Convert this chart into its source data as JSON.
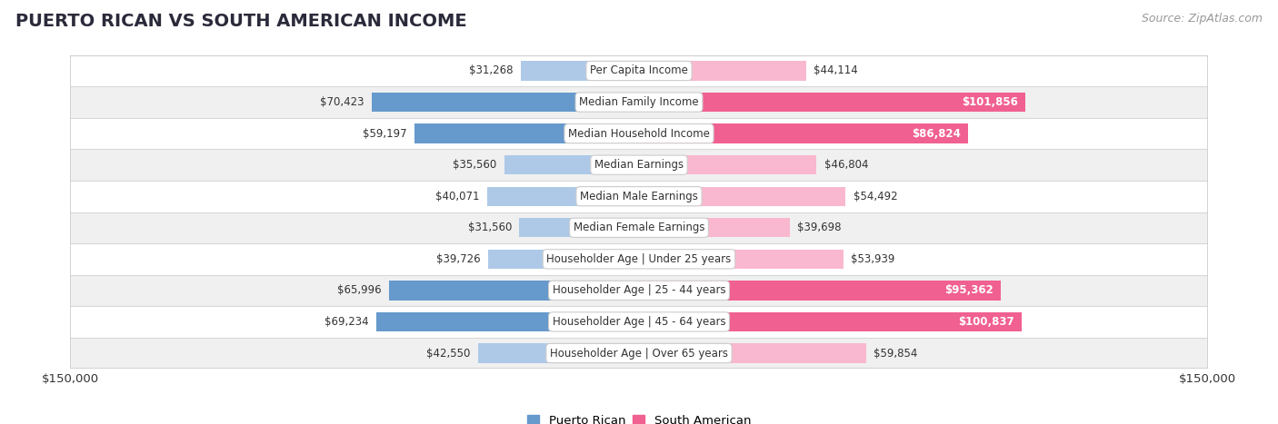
{
  "title": "PUERTO RICAN VS SOUTH AMERICAN INCOME",
  "source": "Source: ZipAtlas.com",
  "categories": [
    "Per Capita Income",
    "Median Family Income",
    "Median Household Income",
    "Median Earnings",
    "Median Male Earnings",
    "Median Female Earnings",
    "Householder Age | Under 25 years",
    "Householder Age | 25 - 44 years",
    "Householder Age | 45 - 64 years",
    "Householder Age | Over 65 years"
  ],
  "puerto_rican": [
    31268,
    70423,
    59197,
    35560,
    40071,
    31560,
    39726,
    65996,
    69234,
    42550
  ],
  "south_american": [
    44114,
    101856,
    86824,
    46804,
    54492,
    39698,
    53939,
    95362,
    100837,
    59854
  ],
  "puerto_rican_labels": [
    "$31,268",
    "$70,423",
    "$59,197",
    "$35,560",
    "$40,071",
    "$31,560",
    "$39,726",
    "$65,996",
    "$69,234",
    "$42,550"
  ],
  "south_american_labels": [
    "$44,114",
    "$101,856",
    "$86,824",
    "$46,804",
    "$54,492",
    "$39,698",
    "$53,939",
    "$95,362",
    "$100,837",
    "$59,854"
  ],
  "color_pr_light": "#aec9e8",
  "color_pr_dark": "#6699cc",
  "color_sa_light": "#f9b8cf",
  "color_sa_dark": "#f06090",
  "max_val": 150000,
  "bg_color": "#ffffff",
  "row_bg_even": "#ffffff",
  "row_bg_odd": "#f0f0f0",
  "row_border": "#d8d8d8",
  "label_dark_rows": [
    1,
    2,
    7,
    8
  ],
  "label_axis_left": "$150,000",
  "label_axis_right": "$150,000",
  "legend_pr": "Puerto Rican",
  "legend_sa": "South American",
  "title_fontsize": 14,
  "source_fontsize": 9,
  "value_fontsize": 8.5,
  "cat_fontsize": 8.5
}
